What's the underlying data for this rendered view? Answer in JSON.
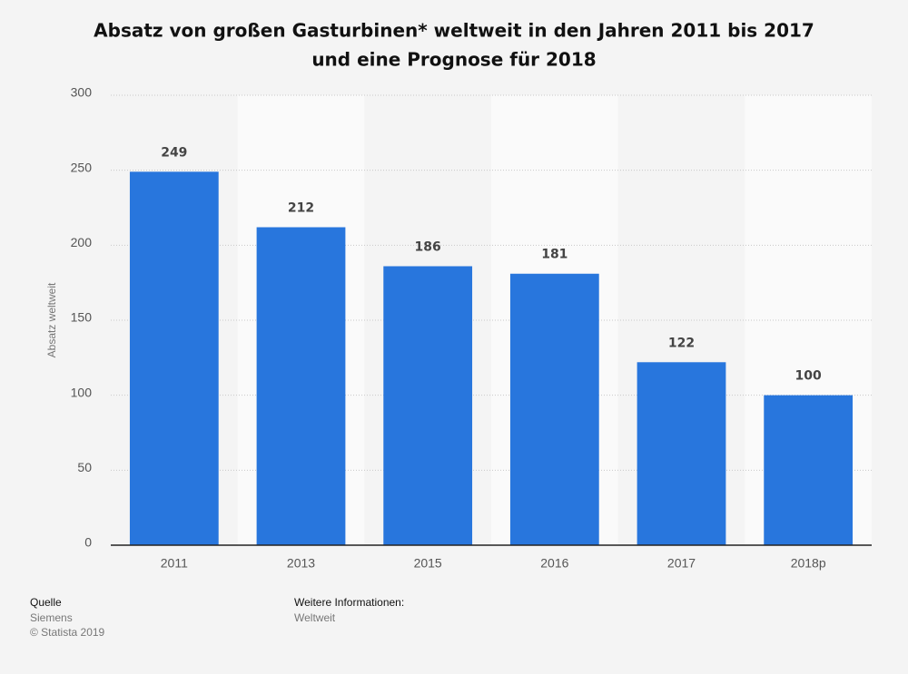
{
  "chart_data": {
    "type": "bar",
    "title": [
      "Absatz von großen Gasturbinen* weltweit in den Jahren 2011 bis 2017",
      "und eine Prognose für 2018"
    ],
    "y_label": "Absatz weltweit",
    "categories": [
      "2011",
      "2013",
      "2015",
      "2016",
      "2017",
      "2018p"
    ],
    "values": [
      249,
      212,
      186,
      181,
      122,
      100
    ],
    "color": "#2876dd",
    "ylim": [
      0,
      300
    ],
    "yticks": [
      0,
      50,
      100,
      150,
      200,
      250,
      300
    ],
    "grid": true
  },
  "footer": {
    "source_label": "Quelle",
    "source": "Siemens",
    "copyright": "© Statista 2019",
    "info_label": "Weitere Informationen:",
    "info": "Weltweit"
  }
}
